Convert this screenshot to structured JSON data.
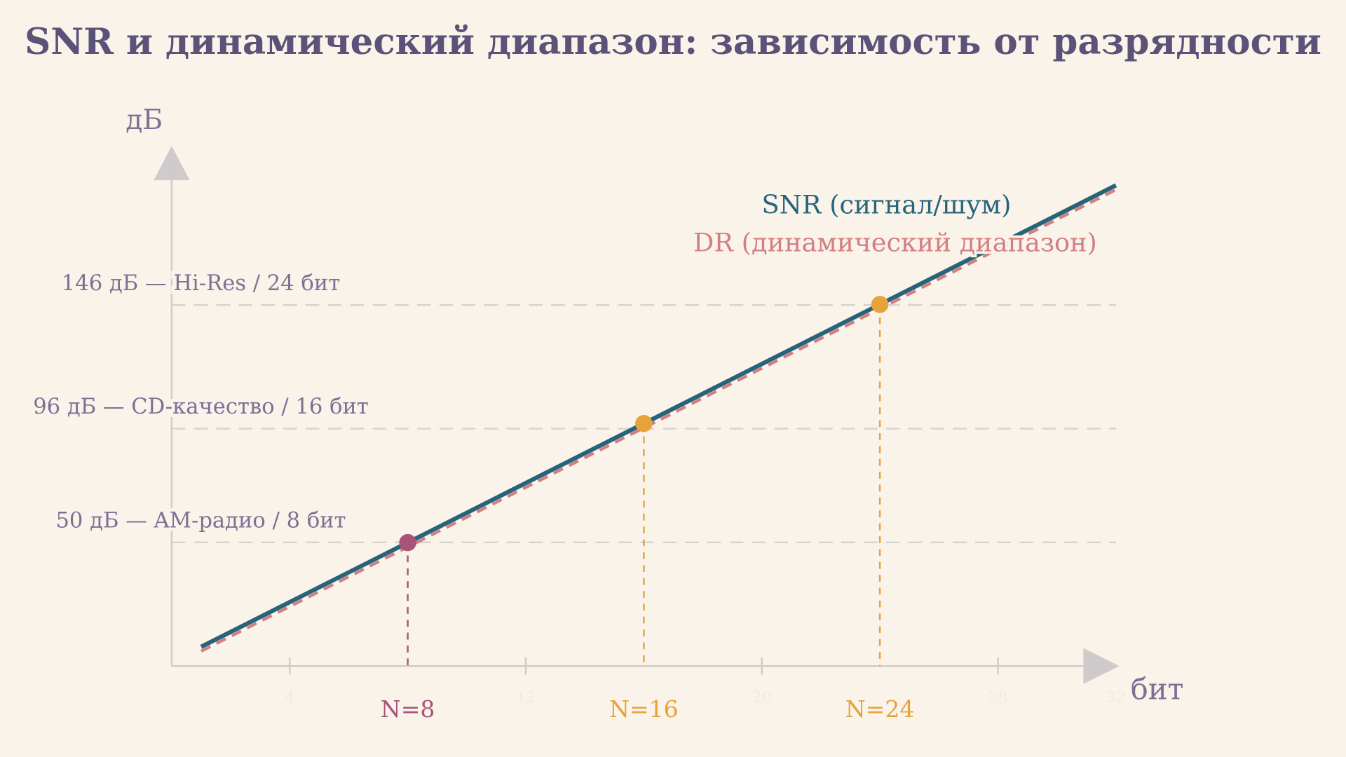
{
  "chart_data": {
    "type": "line",
    "title": "SNR и динамический диапазон: зависимость от разрядности",
    "y_label": "дБ",
    "x_label": "бит",
    "x": [
      1,
      8,
      16,
      24,
      32
    ],
    "series": [
      {
        "name": "SNR (сигнал/шум)",
        "color": "#27647a",
        "dashed": false,
        "values": [
          7.78,
          49.92,
          98.08,
          146.24,
          194.4
        ]
      },
      {
        "name": "DR (динамический диапазон)",
        "color": "#d47f7f",
        "dashed": true,
        "values": [
          6.02,
          48.16,
          96.32,
          144.48,
          192.64
        ]
      }
    ],
    "xlim": [
      0,
      32
    ],
    "ylim": [
      0,
      210
    ],
    "xticks": [
      4,
      12,
      20,
      28,
      32
    ],
    "reference_lines": [
      {
        "value": 146,
        "label": "146 дБ — Hi-Res / 24 бит"
      },
      {
        "value": 96,
        "label": "96 дБ — CD-качество / 16 бит"
      },
      {
        "value": 50,
        "label": "50 дБ — AM-радио / 8 бит"
      }
    ],
    "highlights": [
      {
        "x": 8,
        "y": 49.92,
        "label": "N=8",
        "color": "#a85478"
      },
      {
        "x": 16,
        "y": 98.08,
        "label": "N=16",
        "color": "#e8a23a"
      },
      {
        "x": 24,
        "y": 146.24,
        "label": "N=24",
        "color": "#e8a23a"
      }
    ]
  }
}
